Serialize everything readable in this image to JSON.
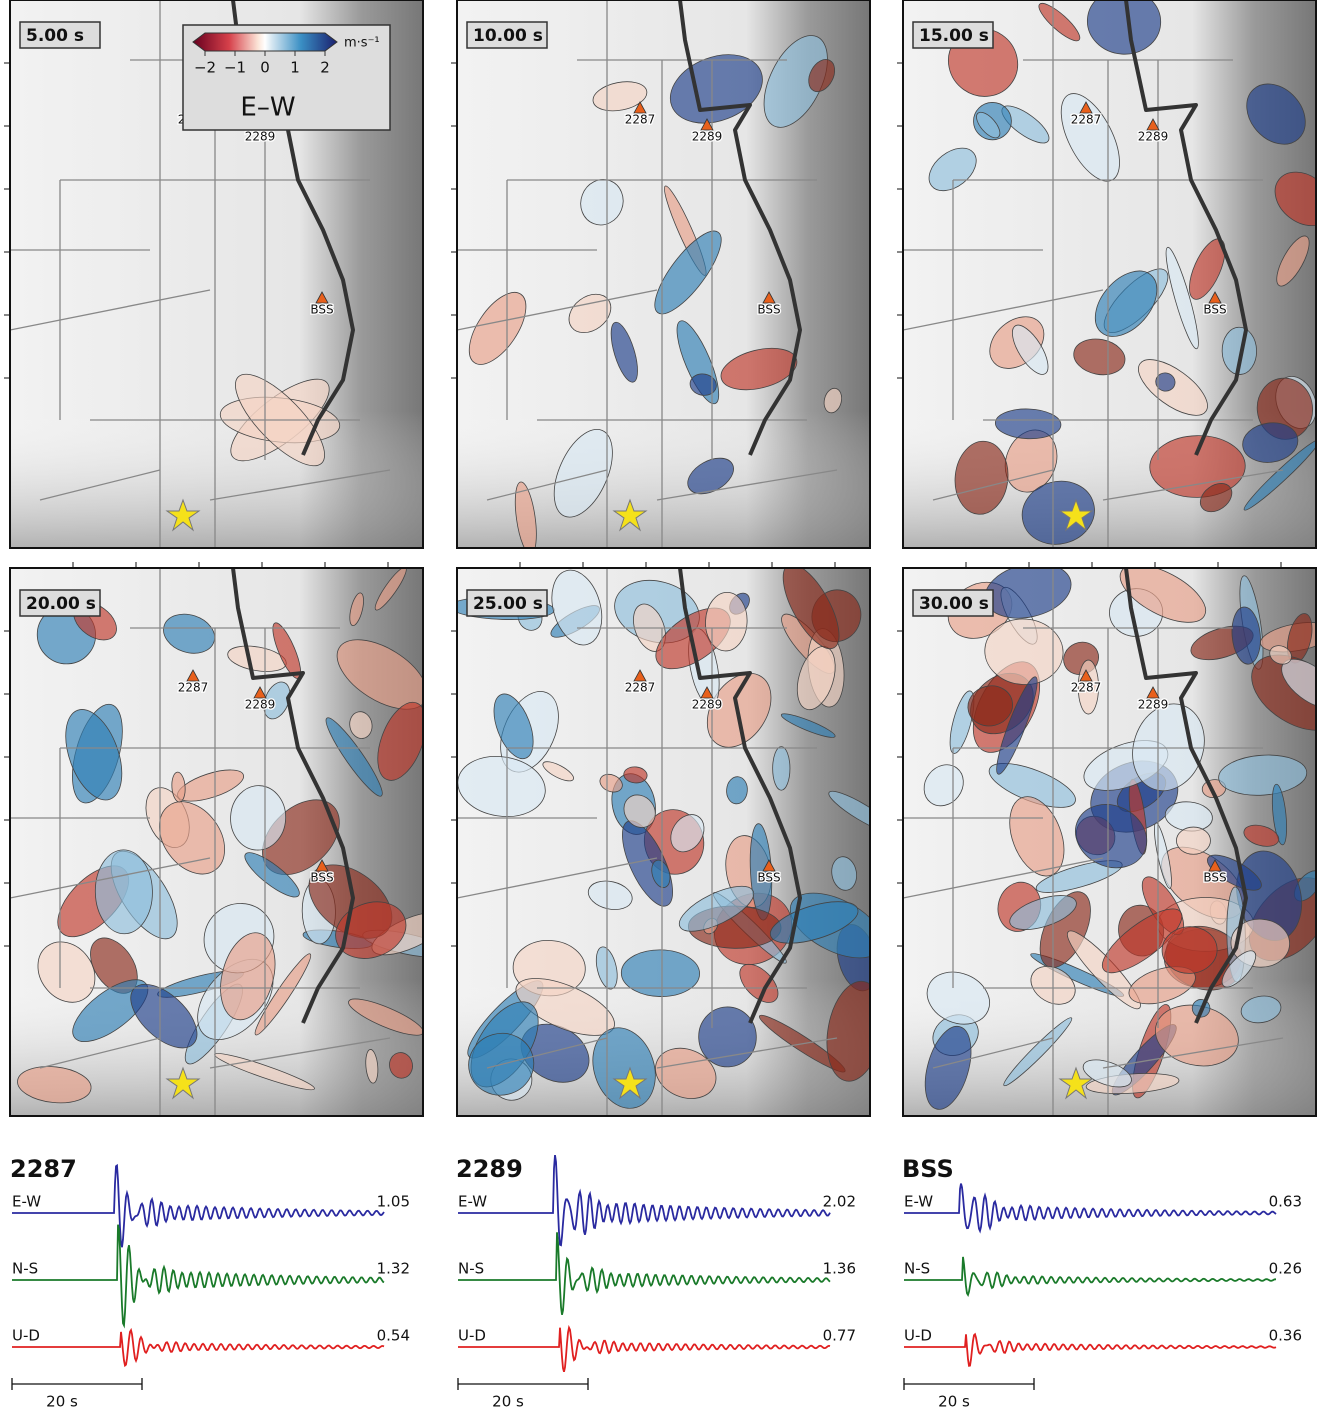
{
  "panels": [
    {
      "time": "5.00 s"
    },
    {
      "time": "10.00 s"
    },
    {
      "time": "15.00 s"
    },
    {
      "time": "20.00 s"
    },
    {
      "time": "25.00 s"
    },
    {
      "time": "30.00 s"
    }
  ],
  "stations": [
    "2287",
    "2289",
    "BSS"
  ],
  "colorbar": {
    "label": "E–W",
    "unit": "m·s⁻¹",
    "clim": [
      -2,
      2
    ],
    "ticks": [
      {
        "value": -2,
        "label": "−2"
      },
      {
        "value": -1,
        "label": "−1"
      },
      0,
      1,
      2
    ]
  },
  "traces": [
    {
      "station": "2287",
      "components": [
        {
          "name": "E-W",
          "peak": 1.05
        },
        {
          "name": "N-S",
          "peak": 1.32
        },
        {
          "name": "U-D",
          "peak": 0.54
        }
      ]
    },
    {
      "station": "2289",
      "components": [
        {
          "name": "E-W",
          "peak": 2.02
        },
        {
          "name": "N-S",
          "peak": 1.36
        },
        {
          "name": "U-D",
          "peak": 0.77
        }
      ]
    },
    {
      "station": "BSS",
      "components": [
        {
          "name": "E-W",
          "peak": 0.63
        },
        {
          "name": "N-S",
          "peak": 0.26
        },
        {
          "name": "U-D",
          "peak": 0.36
        }
      ]
    }
  ],
  "scale_bar": "20 s"
}
